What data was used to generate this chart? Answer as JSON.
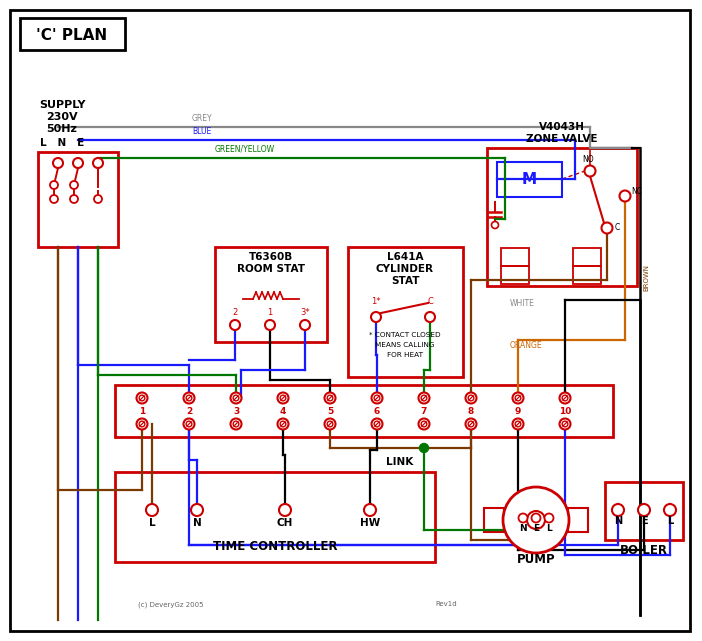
{
  "title": "'C' PLAN",
  "bg_color": "#ffffff",
  "RED": "#cc0000",
  "BLUE": "#1a1aff",
  "GREEN": "#007700",
  "GREY": "#888888",
  "BROWN": "#7a3a00",
  "ORANGE": "#cc6600",
  "BLACK": "#000000",
  "grey_label": "GREY",
  "blue_label": "BLUE",
  "gy_label": "GREEN/YELLOW",
  "brown_label": "BROWN",
  "white_label": "WHITE",
  "orange_label": "ORANGE",
  "link_text": "LINK",
  "supply_line1": "SUPPLY",
  "supply_line2": "230V",
  "supply_line3": "50Hz",
  "zone_line1": "V4043H",
  "zone_line2": "ZONE VALVE",
  "time_ctrl": "TIME CONTROLLER",
  "pump_text": "PUMP",
  "boiler_text": "BOILER",
  "copyright": "(c) DeveryGz 2005",
  "revision": "Rev1d"
}
